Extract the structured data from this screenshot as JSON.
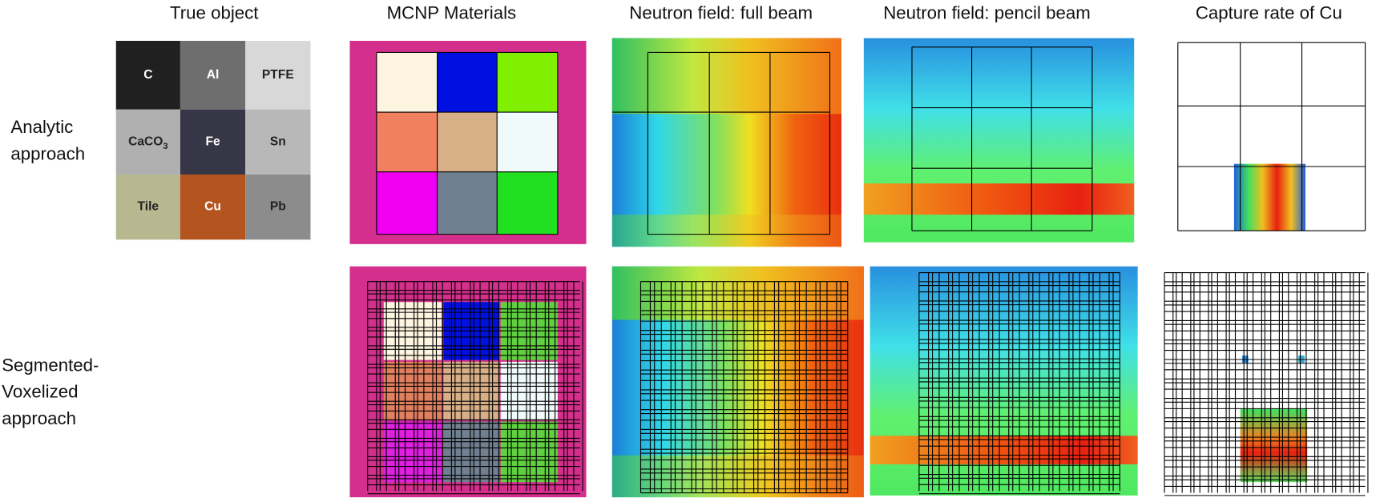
{
  "headers": [
    "True object",
    "MCNP Materials",
    "Neutron field: full beam",
    "Neutron field: pencil beam",
    "Capture rate of Cu"
  ],
  "rows": [
    {
      "lines": [
        "Analytic",
        "approach"
      ]
    },
    {
      "lines": [
        "Segmented-",
        "Voxelized",
        "approach"
      ]
    }
  ],
  "true_object": {
    "cells": [
      {
        "label": "C"
      },
      {
        "label": "Al"
      },
      {
        "label": "PTFE"
      },
      {
        "label": "CaCO",
        "subscript": "3"
      },
      {
        "label": "Fe"
      },
      {
        "label": "Sn"
      },
      {
        "label": "Tile"
      },
      {
        "label": "Cu"
      },
      {
        "label": "Pb"
      }
    ]
  }
}
